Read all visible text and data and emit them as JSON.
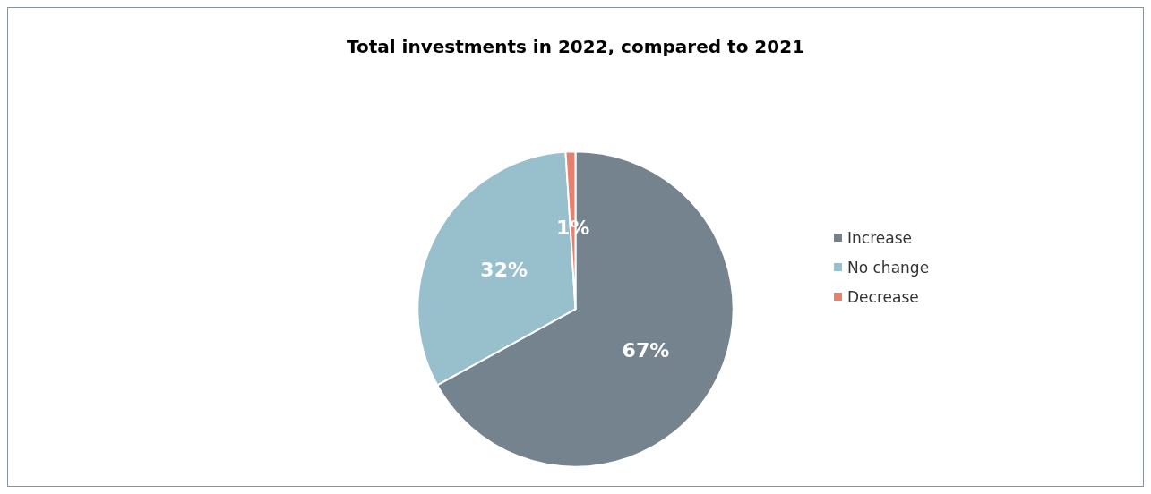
{
  "chart_data": {
    "type": "pie",
    "title": "Total investments in 2022, compared to 2021",
    "categories": [
      "Increase",
      "No change",
      "Decrease"
    ],
    "values": [
      67,
      32,
      1
    ],
    "colors": [
      "#75838f",
      "#97bfcc",
      "#e8806f"
    ],
    "value_labels": [
      "67%",
      "32%",
      "1%"
    ],
    "legend": "right"
  }
}
